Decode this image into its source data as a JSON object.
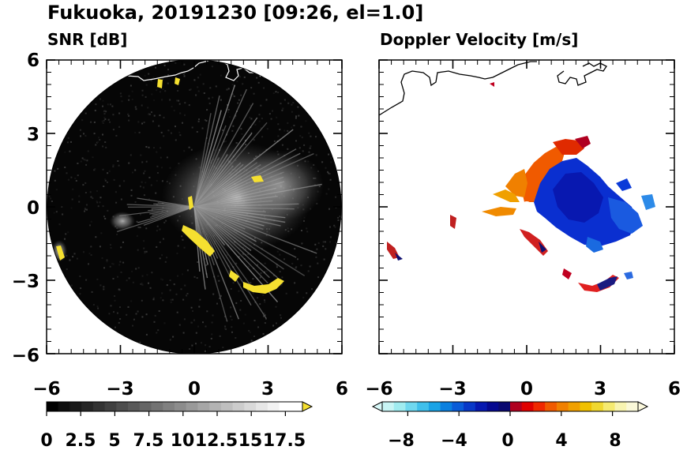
{
  "title": "Fukuoka, 20191230 [09:26, el=1.0]",
  "chart_data": [
    {
      "type": "heatmap",
      "title": "SNR [dB]",
      "xlim": [
        -6,
        6
      ],
      "ylim": [
        -6,
        6
      ],
      "xticks": [
        "−6",
        "−3",
        "0",
        "3",
        "6"
      ],
      "yticks": [
        "6",
        "3",
        "0",
        "−3",
        "−6"
      ],
      "xtick_values": [
        -6,
        -3,
        0,
        3,
        6
      ],
      "ytick_values": [
        6,
        3,
        0,
        -3,
        -6
      ],
      "colorbar": {
        "min": 0,
        "max": 18.75,
        "tick_labels": [
          "0",
          "2.5",
          "5",
          "7.5",
          "10",
          "12.5",
          "15",
          "17.5"
        ],
        "tick_values": [
          0,
          2.5,
          5,
          7.5,
          10,
          12.5,
          15,
          17.5
        ],
        "colors": [
          "#000000",
          "#0d0d0d",
          "#1a1a1a",
          "#262626",
          "#333333",
          "#404040",
          "#4d4d4d",
          "#595959",
          "#666666",
          "#737373",
          "#808080",
          "#8c8c8c",
          "#999999",
          "#a6a6a6",
          "#b3b3b3",
          "#bfbfbf",
          "#cccccc",
          "#d9d9d9",
          "#e6e6e6",
          "#f2f2f2",
          "#ffffff",
          "#ffffff"
        ],
        "extend_color": "#f5e030"
      }
    },
    {
      "type": "heatmap",
      "title": "Doppler Velocity [m/s]",
      "xlim": [
        -6,
        6
      ],
      "ylim": [
        -6,
        6
      ],
      "xticks": [
        "−6",
        "−3",
        "0",
        "3",
        "6"
      ],
      "yticks": [
        "6",
        "3",
        "0",
        "−3",
        "−6"
      ],
      "xtick_values": [
        -6,
        -3,
        0,
        3,
        6
      ],
      "ytick_values": [
        6,
        3,
        0,
        -3,
        -6
      ],
      "colorbar": {
        "min": -10,
        "max": 10,
        "tick_labels": [
          "−8",
          "−4",
          "0",
          "4",
          "8"
        ],
        "tick_values": [
          -8,
          -4,
          0,
          4,
          8
        ],
        "colors": [
          "#c8f5f5",
          "#a0ecf0",
          "#70d8ef",
          "#40c0ec",
          "#1aa3e6",
          "#0a80e0",
          "#0a5cd8",
          "#0838c8",
          "#0618b0",
          "#050890",
          "#0a0870",
          "#b00020",
          "#e00000",
          "#f02800",
          "#f05a00",
          "#f08000",
          "#f0a000",
          "#f0c000",
          "#f0d830",
          "#f5ea70",
          "#f8f4b0",
          "#faf8d8"
        ],
        "extend_low_color": "#d8f8f8",
        "extend_high_color": "#fbf8dc"
      }
    }
  ]
}
